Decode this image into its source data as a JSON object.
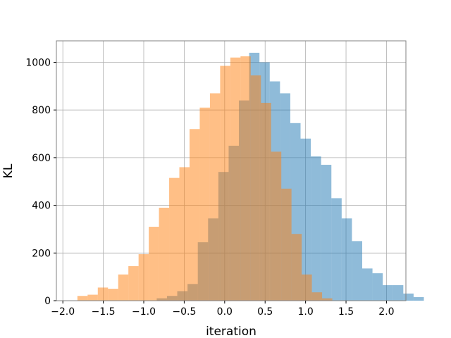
{
  "chart_data": {
    "type": "bar",
    "subtype": "overlapping-histogram",
    "title": "",
    "xlabel": "iteration",
    "ylabel": "KL",
    "xlim": [
      -2.08,
      2.24
    ],
    "ylim": [
      0,
      1090
    ],
    "xticks": [
      -2.0,
      -1.5,
      -1.0,
      -0.5,
      0.0,
      0.5,
      1.0,
      1.5,
      2.0
    ],
    "xtick_labels": [
      "−2.0",
      "−1.5",
      "−1.0",
      "−0.5",
      "0.0",
      "0.5",
      "1.0",
      "1.5",
      "2.0"
    ],
    "yticks": [
      0,
      200,
      400,
      600,
      800,
      1000
    ],
    "ytick_labels": [
      "0",
      "200",
      "400",
      "600",
      "800",
      "1000"
    ],
    "grid": true,
    "bar_alpha": 0.5,
    "series": [
      {
        "color": "#1f77b4",
        "bin_start": -0.84,
        "bin_width": 0.127,
        "counts": [
          10,
          20,
          40,
          70,
          245,
          345,
          540,
          650,
          840,
          1040,
          1000,
          920,
          870,
          745,
          680,
          605,
          570,
          430,
          345,
          250,
          135,
          115,
          65,
          65,
          30,
          15
        ]
      },
      {
        "color": "#ff7f0e",
        "bin_start": -1.82,
        "bin_width": 0.126,
        "counts": [
          20,
          25,
          55,
          50,
          110,
          145,
          195,
          310,
          390,
          515,
          560,
          720,
          810,
          870,
          985,
          1020,
          1025,
          945,
          830,
          625,
          470,
          280,
          110,
          35,
          10
        ]
      }
    ]
  }
}
